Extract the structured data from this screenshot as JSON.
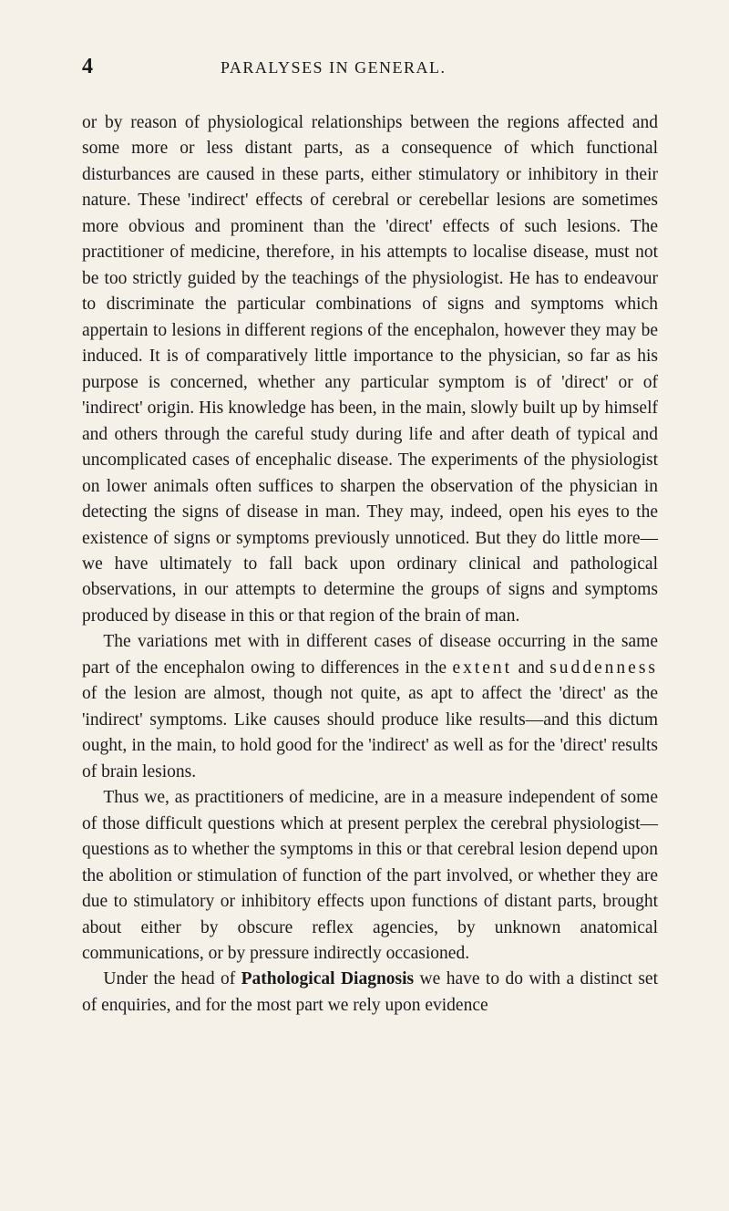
{
  "header": {
    "page_number": "4",
    "running_title": "PARALYSES IN GENERAL."
  },
  "paragraphs": {
    "p1": "or by reason of physiological relationships between the regions affected and some more or less distant parts, as a consequence of which functional disturbances are caused in these parts, either stimulatory or inhibitory in their nature. These 'indirect' effects of cerebral or cerebellar lesions are sometimes more obvious and prominent than the 'direct' effects of such lesions. The practitioner of medicine, therefore, in his attempts to localise disease, must not be too strictly guided by the teachings of the physiologist. He has to endeavour to discriminate the particular combinations of signs and symptoms which appertain to lesions in different regions of the encephalon, however they may be induced. It is of comparatively little importance to the physician, so far as his purpose is concerned, whether any particular symptom is of 'direct' or of 'indirect' origin. His knowledge has been, in the main, slowly built up by himself and others through the careful study during life and after death of typical and uncomplicated cases of encephalic disease. The experiments of the physiologist on lower animals often suffices to sharpen the observation of the physician in detecting the signs of disease in man. They may, indeed, open his eyes to the existence of signs or symptoms previously unnoticed. But they do little more—we have ultimately to fall back upon ordinary clinical and pathological observations, in our attempts to determine the groups of signs and symptoms produced by disease in this or that region of the brain of man.",
    "p2_a": "The variations met with in different cases of disease occurring in the same part of the encephalon owing to differences in the ",
    "p2_extent": "extent",
    "p2_b": " and ",
    "p2_suddenness": "suddenness",
    "p2_c": " of the lesion are almost, though not quite, as apt to affect the 'direct' as the 'indirect' symptoms. Like causes should produce like results—and this dictum ought, in the main, to hold good for the 'indirect' as well as for the 'direct' results of brain lesions.",
    "p3": "Thus we, as practitioners of medicine, are in a measure independent of some of those difficult questions which at present perplex the cerebral physiologist—questions as to whether the symptoms in this or that cerebral lesion depend upon the abolition or stimulation of function of the part involved, or whether they are due to stimulatory or inhibitory effects upon functions of distant parts, brought about either by obscure reflex agencies, by unknown anatomical communications, or by pressure indirectly occasioned.",
    "p4_a": "Under the head of ",
    "p4_bold": "Pathological Diagnosis",
    "p4_b": " we have to do with a distinct set of enquiries, and for the most part we rely upon evidence"
  }
}
